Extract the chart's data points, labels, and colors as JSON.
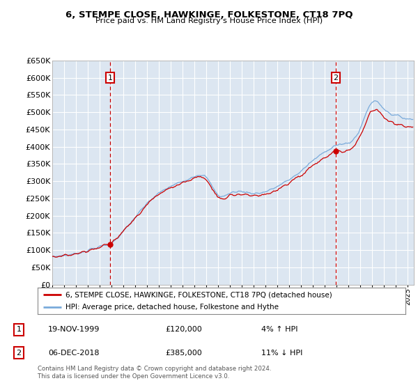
{
  "title1": "6, STEMPE CLOSE, HAWKINGE, FOLKESTONE, CT18 7PQ",
  "title2": "Price paid vs. HM Land Registry's House Price Index (HPI)",
  "legend_line1": "6, STEMPE CLOSE, HAWKINGE, FOLKESTONE, CT18 7PQ (detached house)",
  "legend_line2": "HPI: Average price, detached house, Folkestone and Hythe",
  "annotation1_label": "1",
  "annotation1_date": "19-NOV-1999",
  "annotation1_price": "£120,000",
  "annotation1_hpi": "4% ↑ HPI",
  "annotation2_label": "2",
  "annotation2_date": "06-DEC-2018",
  "annotation2_price": "£385,000",
  "annotation2_hpi": "11% ↓ HPI",
  "footer": "Contains HM Land Registry data © Crown copyright and database right 2024.\nThis data is licensed under the Open Government Licence v3.0.",
  "sale1_year": 1999.88,
  "sale1_value": 120000,
  "sale2_year": 2018.92,
  "sale2_value": 385000,
  "hpi_color": "#7aabdb",
  "price_color": "#cc0000",
  "background_color": "#dce6f1",
  "plot_bg": "#ffffff",
  "ylim": [
    0,
    650000
  ],
  "xlim_start": 1995.0,
  "xlim_end": 2025.5
}
